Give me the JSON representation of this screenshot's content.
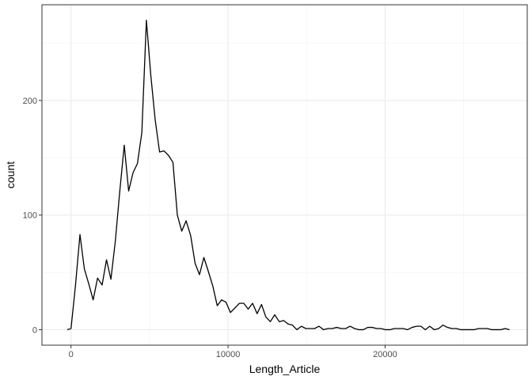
{
  "chart_data": {
    "type": "line",
    "xlabel": "Length_Article",
    "ylabel": "count",
    "xlim": [
      -1850,
      29050
    ],
    "ylim": [
      -13.5,
      283.5
    ],
    "grid": true,
    "x_ticks": [
      0,
      10000,
      20000
    ],
    "x_tick_labels": [
      "0",
      "10000",
      "20000"
    ],
    "y_ticks": [
      0,
      100,
      200
    ],
    "y_tick_labels": [
      "0",
      "100",
      "200"
    ],
    "series": [
      {
        "x": [
          -240,
          0,
          280,
          570,
          850,
          1130,
          1410,
          1690,
          1980,
          2260,
          2540,
          2820,
          3100,
          3390,
          3670,
          3950,
          4230,
          4510,
          4800,
          5080,
          5360,
          5640,
          5920,
          6210,
          6490,
          6770,
          7050,
          7330,
          7620,
          7900,
          8180,
          8460,
          8740,
          9030,
          9310,
          9590,
          9870,
          10150,
          10440,
          10720,
          11000,
          11280,
          11560,
          11850,
          12130,
          12410,
          12690,
          12970,
          13260,
          13540,
          13820,
          14100,
          14380,
          14670,
          14950,
          15230,
          15510,
          15790,
          16080,
          16360,
          16640,
          16920,
          17200,
          17490,
          17770,
          18050,
          18330,
          18610,
          18900,
          19180,
          19460,
          19740,
          20020,
          20310,
          20590,
          20870,
          21150,
          21430,
          21720,
          22000,
          22280,
          22560,
          22840,
          23130,
          23410,
          23690,
          23970,
          24250,
          24540,
          24820,
          25100,
          25380,
          25660,
          25950,
          26230,
          26510,
          26790,
          27070,
          27360,
          27640,
          27920
        ],
        "values": [
          0,
          1,
          38,
          83,
          53,
          40,
          26,
          45,
          39,
          61,
          44,
          77,
          120,
          161,
          121,
          137,
          145,
          172,
          270,
          222,
          183,
          155,
          156,
          152,
          146,
          100,
          86,
          95,
          82,
          58,
          48,
          63,
          51,
          38,
          21,
          26,
          24,
          15,
          19,
          23,
          23,
          18,
          23,
          14,
          22,
          11,
          7,
          13,
          7,
          8,
          5,
          4,
          0,
          3,
          1,
          1,
          1,
          3,
          0,
          1,
          1,
          2,
          1,
          1,
          3,
          1,
          0,
          0,
          2,
          2,
          1,
          1,
          0,
          0,
          1,
          1,
          1,
          0,
          2,
          3,
          3,
          0,
          3,
          0,
          1,
          4,
          2,
          1,
          1,
          0,
          0,
          0,
          0,
          1,
          1,
          1,
          0,
          0,
          0,
          1,
          0
        ]
      }
    ]
  }
}
